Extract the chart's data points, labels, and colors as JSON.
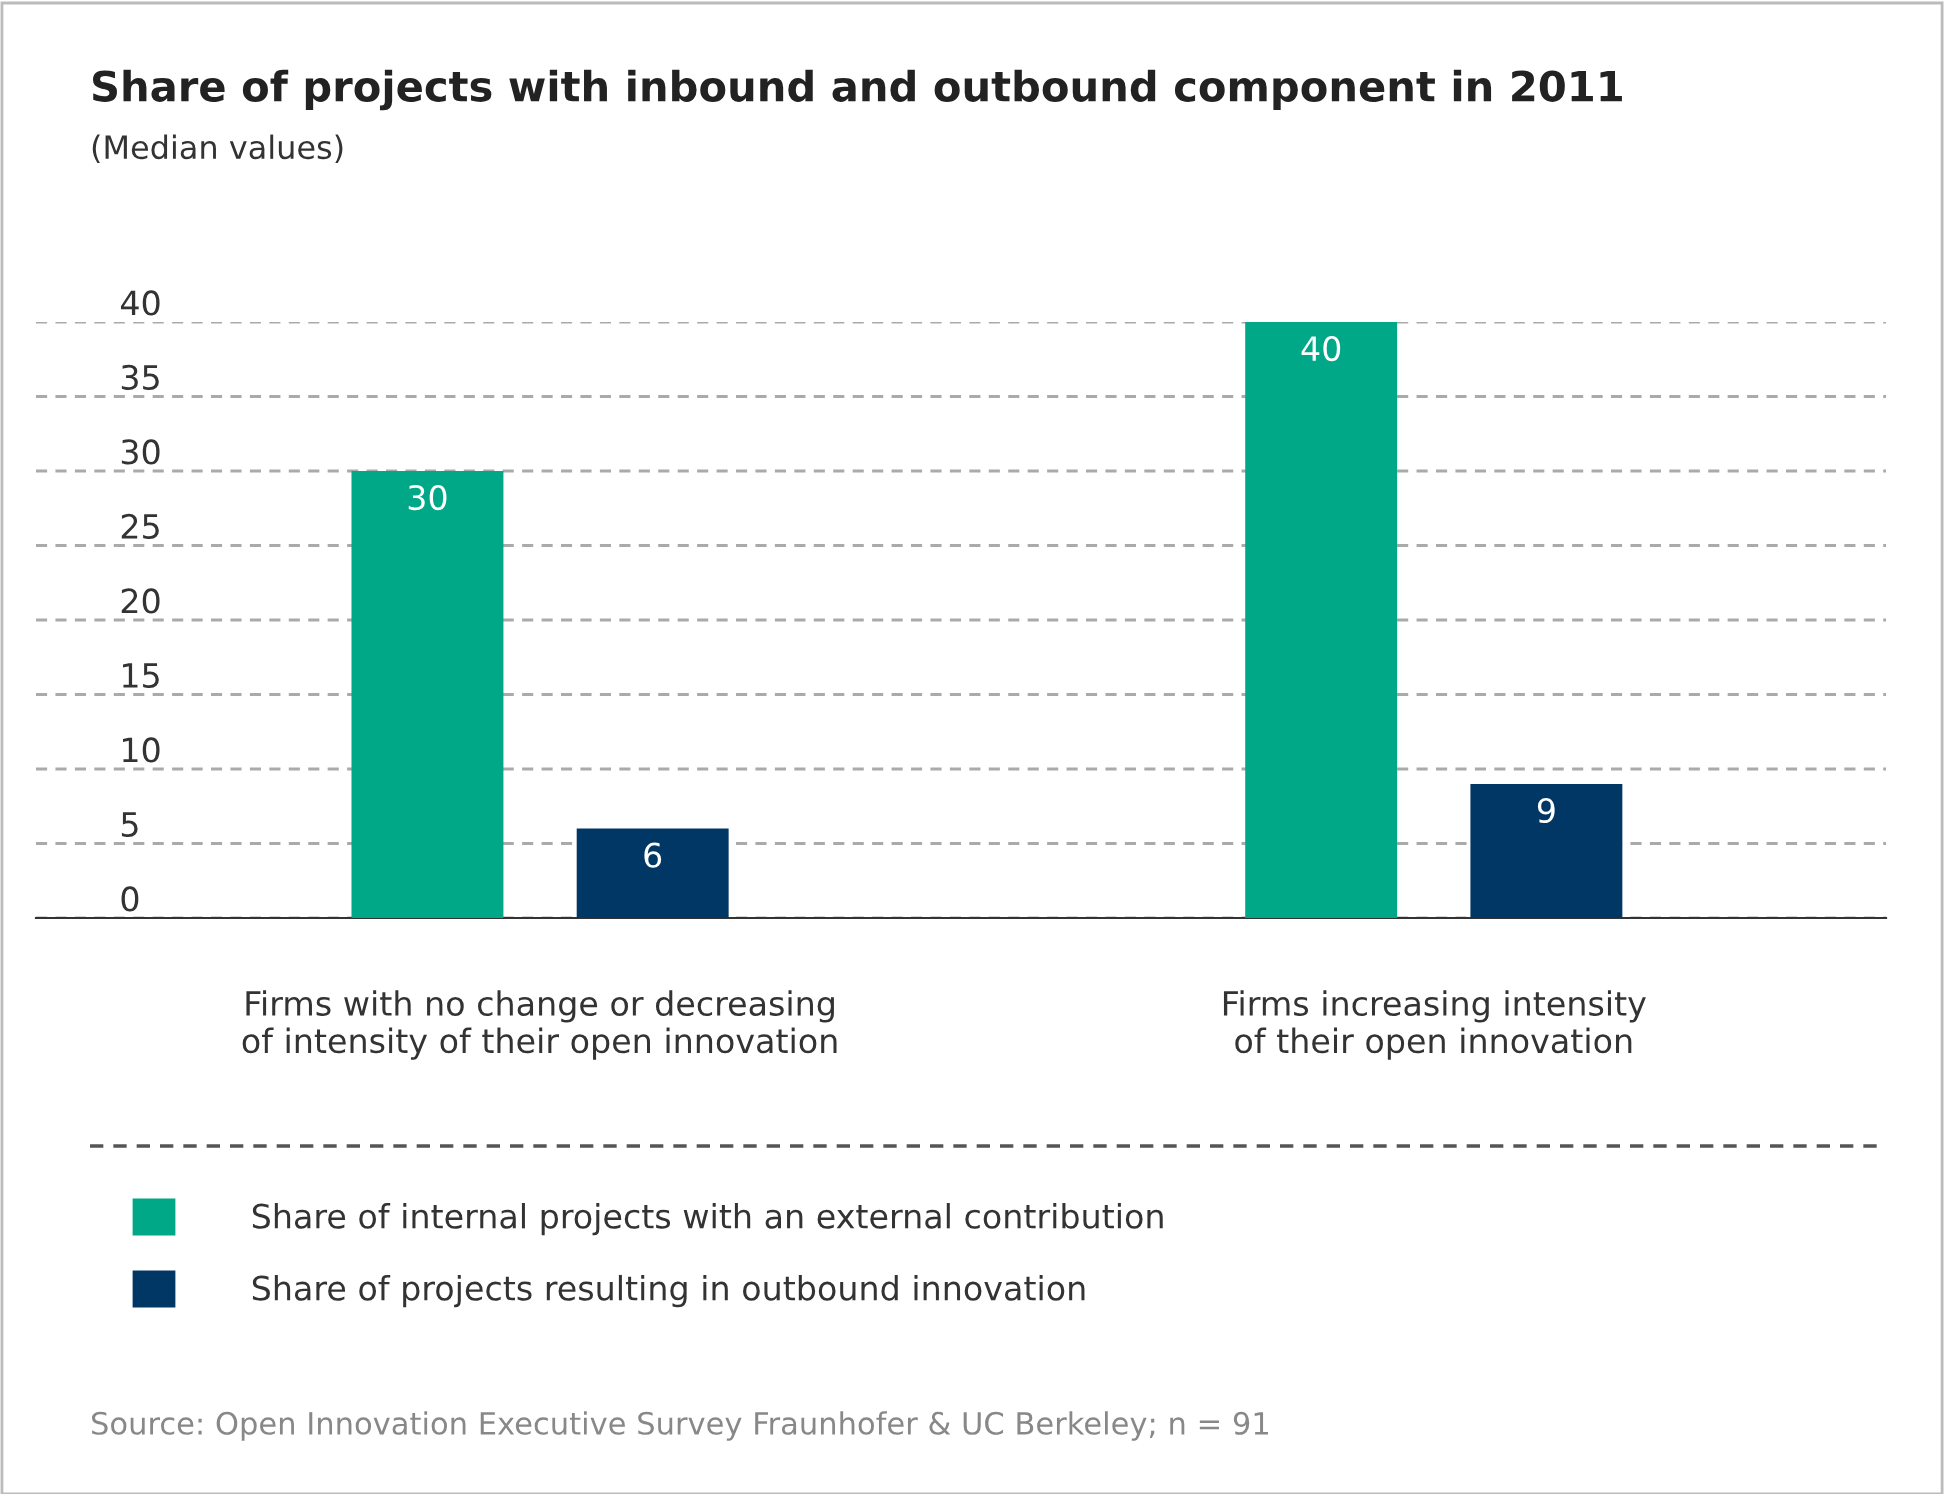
{
  "chart_data": {
    "type": "bar",
    "title": "Share of projects with inbound and outbound component in 2011",
    "subtitle": "(Median values)",
    "categories": [
      "Firms with no change or decreasing\nof intensity of their open innovation",
      "Firms increasing intensity\nof their open innovation"
    ],
    "series": [
      {
        "name": "Share of internal projects with an external contribution",
        "color": "#00a887",
        "values": [
          30,
          40
        ]
      },
      {
        "name": "Share of projects resulting in outbound innovation",
        "color": "#003764",
        "values": [
          6,
          9
        ]
      }
    ],
    "ylim": [
      0,
      40
    ],
    "yticks": [
      0,
      5,
      10,
      15,
      20,
      25,
      30,
      35,
      40
    ],
    "grid": "y",
    "legend": "bottom",
    "data_labels": true,
    "annotations": [
      "Source: Open Innovation Executive Survey Fraunhofer & UC Berkeley; n = 91"
    ]
  }
}
